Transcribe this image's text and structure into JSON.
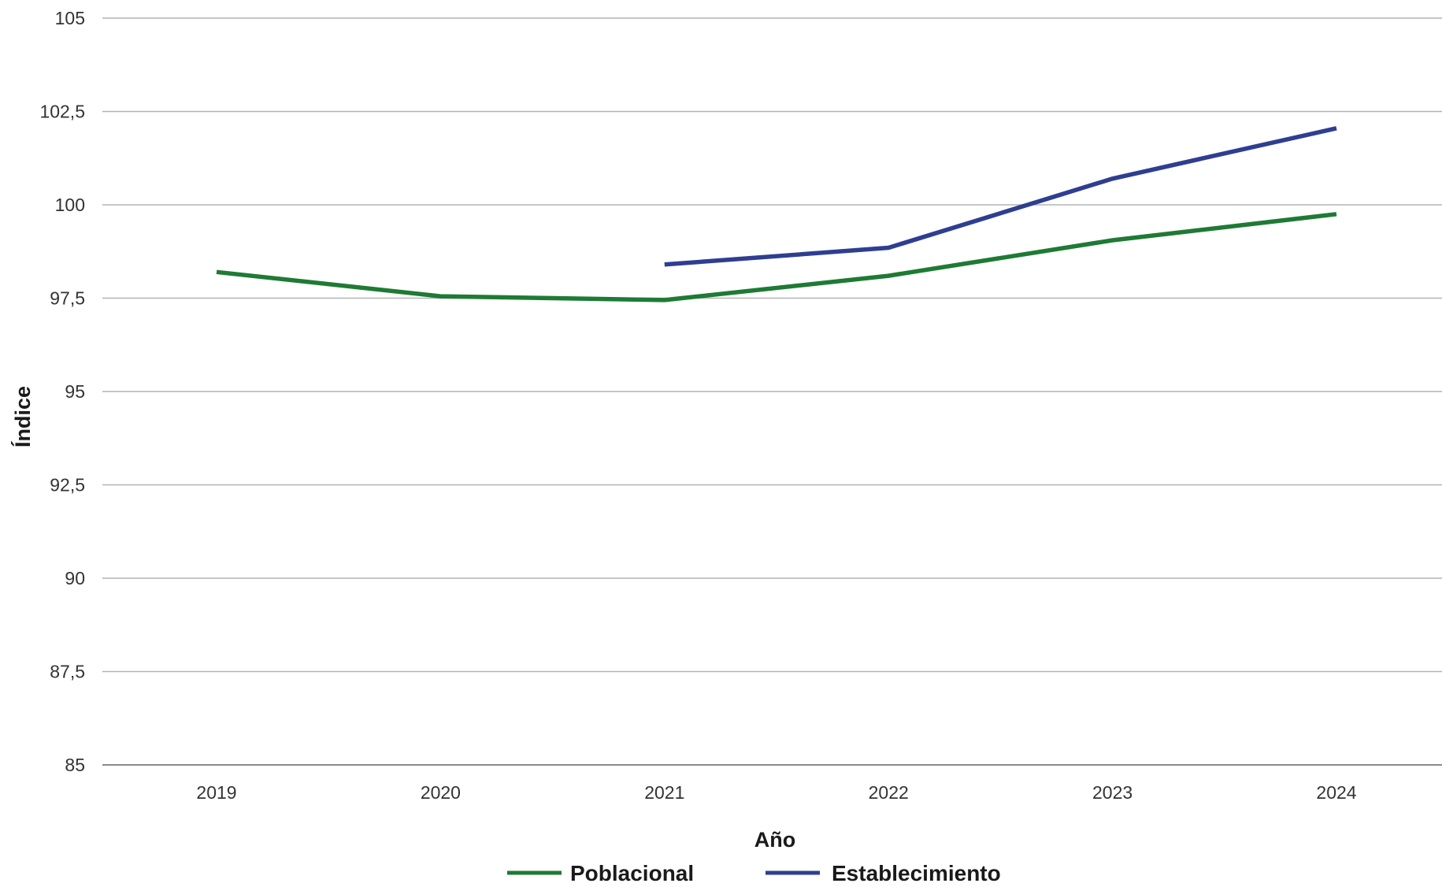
{
  "chart_data": {
    "type": "line",
    "title": "",
    "xlabel": "Año",
    "ylabel": "Índice",
    "categories": [
      "2019",
      "2020",
      "2021",
      "2022",
      "2023",
      "2024"
    ],
    "ylim": [
      85,
      105
    ],
    "yticks": [
      "85",
      "87,5",
      "90",
      "92,5",
      "95",
      "97,5",
      "100",
      "102,5",
      "105"
    ],
    "grid": "horizontal",
    "legend_position": "bottom",
    "series": [
      {
        "name": "Poblacional",
        "color": "#1e7a35",
        "values": [
          98.2,
          97.55,
          97.45,
          98.1,
          99.05,
          99.75
        ]
      },
      {
        "name": "Establecimiento",
        "color": "#2e3e91",
        "values": [
          null,
          null,
          98.4,
          98.85,
          100.7,
          102.05
        ]
      }
    ]
  }
}
